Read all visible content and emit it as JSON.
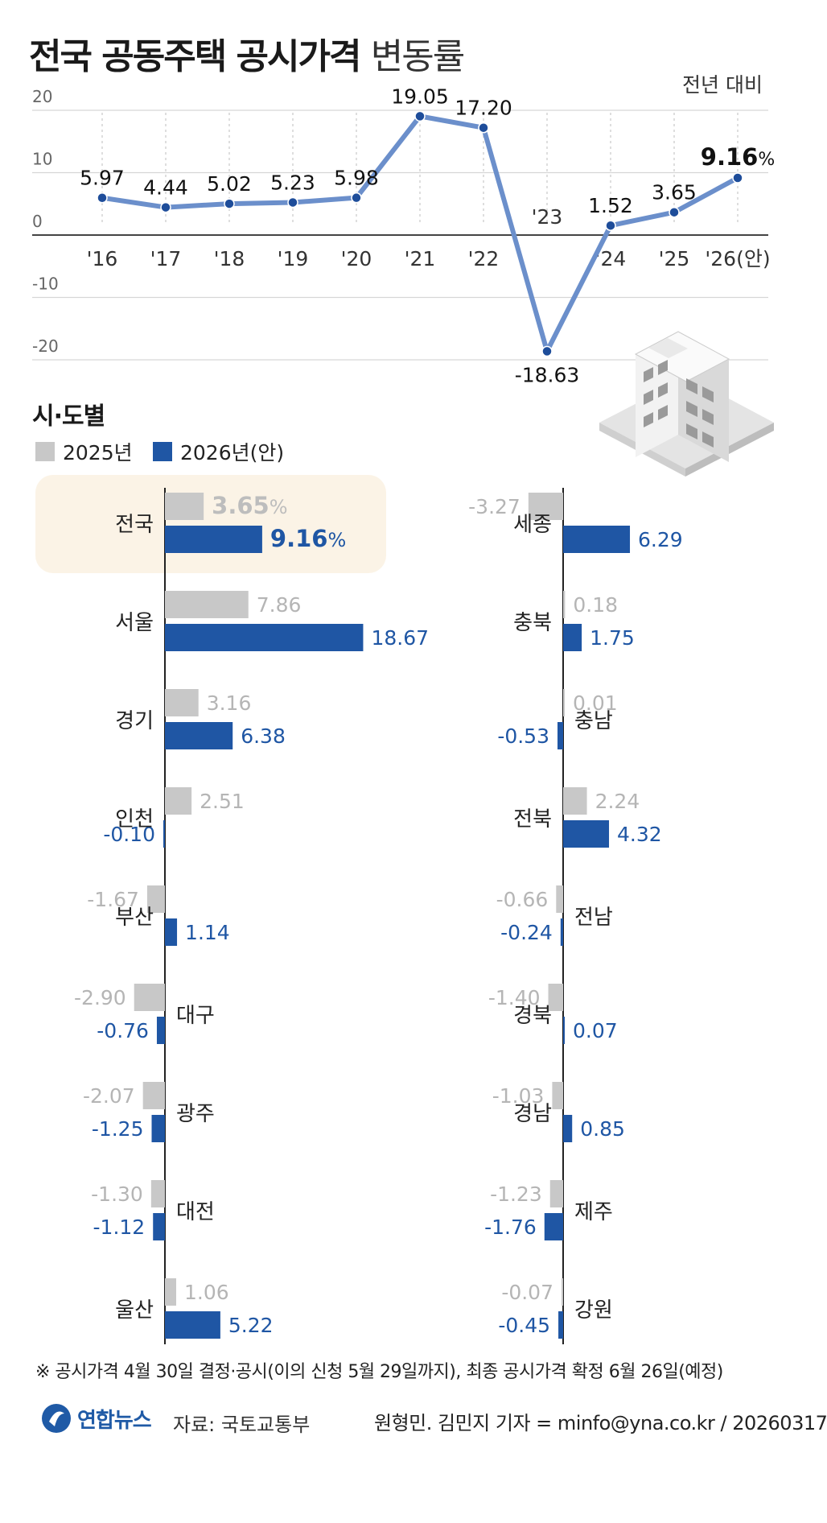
{
  "header": {
    "title_bold": "전국 공동주택 공시가격",
    "title_light": "변동률",
    "subtitle": "전년 대비"
  },
  "chart_data": [
    {
      "type": "line",
      "x": [
        "'16",
        "'17",
        "'18",
        "'19",
        "'20",
        "'21",
        "'22",
        "'23",
        "'24",
        "'25",
        "'26(안)"
      ],
      "values": [
        5.97,
        4.44,
        5.02,
        5.23,
        5.98,
        19.05,
        17.2,
        -18.63,
        1.52,
        3.65,
        9.16
      ],
      "value_labels": [
        "5.97",
        "4.44",
        "5.02",
        "5.23",
        "5.98",
        "19.05",
        "17.20",
        "-18.63",
        "1.52",
        "3.65",
        "9.16"
      ],
      "last_label_suffix": "%",
      "y_ticks": [
        "20",
        "10",
        "0",
        "-10",
        "-20"
      ],
      "ylim": [
        -20,
        20
      ],
      "line_color": "#6b8fcb",
      "grid": true
    },
    {
      "type": "bar",
      "title": "시·도별",
      "orientation": "horizontal",
      "legend": [
        {
          "name": "2025년",
          "color": "#c8c8c8"
        },
        {
          "name": "2026년(안)",
          "color": "#1f56a4"
        }
      ],
      "columns": [
        {
          "regions": [
            {
              "name": "전국",
              "v2025": 3.65,
              "v2026": 9.16,
              "l2025": "3.65",
              "l2026": "9.16",
              "suffix": "%"
            },
            {
              "name": "서울",
              "v2025": 7.86,
              "v2026": 18.67,
              "l2025": "7.86",
              "l2026": "18.67"
            },
            {
              "name": "경기",
              "v2025": 3.16,
              "v2026": 6.38,
              "l2025": "3.16",
              "l2026": "6.38"
            },
            {
              "name": "인천",
              "v2025": 2.51,
              "v2026": -0.1,
              "l2025": "2.51",
              "l2026": "-0.10"
            },
            {
              "name": "부산",
              "v2025": -1.67,
              "v2026": 1.14,
              "l2025": "-1.67",
              "l2026": "1.14"
            },
            {
              "name": "대구",
              "v2025": -2.9,
              "v2026": -0.76,
              "l2025": "-2.90",
              "l2026": "-0.76"
            },
            {
              "name": "광주",
              "v2025": -2.07,
              "v2026": -1.25,
              "l2025": "-2.07",
              "l2026": "-1.25"
            },
            {
              "name": "대전",
              "v2025": -1.3,
              "v2026": -1.12,
              "l2025": "-1.30",
              "l2026": "-1.12"
            },
            {
              "name": "울산",
              "v2025": 1.06,
              "v2026": 5.22,
              "l2025": "1.06",
              "l2026": "5.22"
            }
          ]
        },
        {
          "regions": [
            {
              "name": "세종",
              "v2025": -3.27,
              "v2026": 6.29,
              "l2025": "-3.27",
              "l2026": "6.29"
            },
            {
              "name": "충북",
              "v2025": 0.18,
              "v2026": 1.75,
              "l2025": "0.18",
              "l2026": "1.75"
            },
            {
              "name": "충남",
              "v2025": 0.01,
              "v2026": -0.53,
              "l2025": "0.01",
              "l2026": "-0.53"
            },
            {
              "name": "전북",
              "v2025": 2.24,
              "v2026": 4.32,
              "l2025": "2.24",
              "l2026": "4.32"
            },
            {
              "name": "전남",
              "v2025": -0.66,
              "v2026": -0.24,
              "l2025": "-0.66",
              "l2026": "-0.24"
            },
            {
              "name": "경북",
              "v2025": -1.4,
              "v2026": 0.07,
              "l2025": "-1.40",
              "l2026": "0.07"
            },
            {
              "name": "경남",
              "v2025": -1.03,
              "v2026": 0.85,
              "l2025": "-1.03",
              "l2026": "0.85"
            },
            {
              "name": "제주",
              "v2025": -1.23,
              "v2026": -1.76,
              "l2025": "-1.23",
              "l2026": "-1.76"
            },
            {
              "name": "강원",
              "v2025": -0.07,
              "v2026": -0.45,
              "l2025": "-0.07",
              "l2026": "-0.45"
            }
          ]
        }
      ]
    }
  ],
  "footer": {
    "note": "※ 공시가격 4월 30일 결정·공시(이의 신청 5월 29일까지), 최종 공시가격 확정 6월 26일(예정)",
    "logo_text": "연합뉴스",
    "source": "자료: 국토교통부",
    "credit": "원형민. 김민지 기자 = minfo@yna.co.kr / 20260317"
  }
}
